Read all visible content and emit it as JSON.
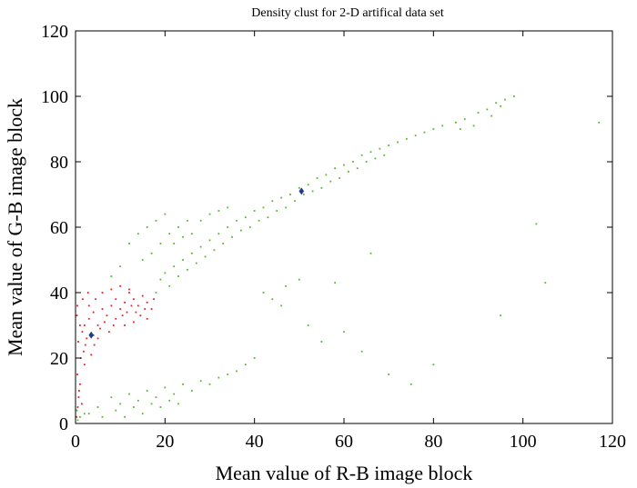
{
  "chart_data": {
    "type": "scatter",
    "title": "Density clust for 2-D artifical data set",
    "xlabel": "Mean value of R-B image block",
    "ylabel": "Mean value of G-B image block",
    "xlim": [
      0,
      120
    ],
    "ylim": [
      0,
      120
    ],
    "xticks": [
      0,
      20,
      40,
      60,
      80,
      100,
      120
    ],
    "yticks": [
      0,
      20,
      40,
      60,
      80,
      100,
      120
    ],
    "grid": false,
    "series": [
      {
        "color": "#ee1c25",
        "points": [
          [
            0.5,
            5
          ],
          [
            0.8,
            10
          ],
          [
            0.4,
            15
          ],
          [
            1.2,
            20
          ],
          [
            0.6,
            25
          ],
          [
            1.5,
            28
          ],
          [
            0.3,
            33
          ],
          [
            2,
            30
          ],
          [
            2.5,
            26
          ],
          [
            1.8,
            22
          ],
          [
            3,
            32
          ],
          [
            4,
            34
          ],
          [
            5,
            30
          ],
          [
            6,
            35
          ],
          [
            7,
            33
          ],
          [
            8,
            36
          ],
          [
            9,
            38
          ],
          [
            10,
            35
          ],
          [
            11,
            37
          ],
          [
            12,
            40
          ],
          [
            13,
            38
          ],
          [
            14,
            36
          ],
          [
            15,
            39
          ],
          [
            16,
            37
          ],
          [
            17,
            35
          ],
          [
            4,
            27
          ],
          [
            5.5,
            29
          ],
          [
            6.5,
            31
          ],
          [
            7.5,
            28
          ],
          [
            9,
            32
          ],
          [
            10.5,
            33
          ],
          [
            11.5,
            34
          ],
          [
            12.5,
            36
          ],
          [
            13.5,
            34
          ],
          [
            14.5,
            33
          ],
          [
            15.5,
            35
          ],
          [
            3,
            36
          ],
          [
            4.5,
            38
          ],
          [
            6,
            40
          ],
          [
            8,
            41
          ],
          [
            10,
            42
          ],
          [
            12,
            41
          ],
          [
            2,
            18
          ],
          [
            1,
            12
          ],
          [
            0.7,
            8
          ],
          [
            1.4,
            6
          ],
          [
            2.2,
            24
          ],
          [
            3.5,
            21
          ],
          [
            4.2,
            24
          ],
          [
            5,
            26
          ],
          [
            8.5,
            30
          ],
          [
            11,
            30
          ],
          [
            13,
            31
          ],
          [
            16,
            32
          ],
          [
            17.5,
            38
          ],
          [
            1,
            30
          ],
          [
            0.4,
            36
          ],
          [
            1.6,
            38
          ],
          [
            2.8,
            40
          ],
          [
            0.2,
            2
          ]
        ]
      },
      {
        "color": "#55b82e",
        "points": [
          [
            18,
            40
          ],
          [
            19,
            44
          ],
          [
            20,
            46
          ],
          [
            21,
            42
          ],
          [
            22,
            48
          ],
          [
            23,
            45
          ],
          [
            24,
            50
          ],
          [
            25,
            47
          ],
          [
            26,
            52
          ],
          [
            27,
            49
          ],
          [
            28,
            54
          ],
          [
            29,
            51
          ],
          [
            30,
            56
          ],
          [
            31,
            53
          ],
          [
            32,
            58
          ],
          [
            33,
            55
          ],
          [
            34,
            60
          ],
          [
            35,
            57
          ],
          [
            36,
            62
          ],
          [
            37,
            59
          ],
          [
            38,
            63
          ],
          [
            39,
            60
          ],
          [
            40,
            65
          ],
          [
            41,
            62
          ],
          [
            42,
            66
          ],
          [
            43,
            63
          ],
          [
            44,
            68
          ],
          [
            45,
            65
          ],
          [
            46,
            69
          ],
          [
            47,
            66
          ],
          [
            48,
            70
          ],
          [
            49,
            68
          ],
          [
            50,
            72
          ],
          [
            51,
            70
          ],
          [
            52,
            73
          ],
          [
            53,
            71
          ],
          [
            54,
            75
          ],
          [
            55,
            72
          ],
          [
            56,
            76
          ],
          [
            57,
            74
          ],
          [
            58,
            78
          ],
          [
            59,
            75
          ],
          [
            60,
            79
          ],
          [
            61,
            77
          ],
          [
            62,
            80
          ],
          [
            63,
            78
          ],
          [
            64,
            82
          ],
          [
            65,
            80
          ],
          [
            66,
            83
          ],
          [
            67,
            81
          ],
          [
            68,
            84
          ],
          [
            69,
            82
          ],
          [
            70,
            85
          ],
          [
            72,
            86
          ],
          [
            74,
            87
          ],
          [
            76,
            88
          ],
          [
            78,
            89
          ],
          [
            80,
            90
          ],
          [
            82,
            91
          ],
          [
            85,
            92
          ],
          [
            87,
            93
          ],
          [
            90,
            95
          ],
          [
            92,
            96
          ],
          [
            94,
            98
          ],
          [
            96,
            99
          ],
          [
            98,
            100
          ],
          [
            95,
            97
          ],
          [
            93,
            94
          ],
          [
            89,
            91
          ],
          [
            86,
            90
          ],
          [
            12,
            55
          ],
          [
            14,
            58
          ],
          [
            16,
            60
          ],
          [
            18,
            62
          ],
          [
            20,
            64
          ],
          [
            15,
            50
          ],
          [
            17,
            52
          ],
          [
            19,
            55
          ],
          [
            21,
            58
          ],
          [
            23,
            60
          ],
          [
            25,
            62
          ],
          [
            22,
            55
          ],
          [
            24,
            57
          ],
          [
            26,
            58
          ],
          [
            28,
            62
          ],
          [
            30,
            64
          ],
          [
            32,
            65
          ],
          [
            34,
            66
          ],
          [
            10,
            48
          ],
          [
            8,
            45
          ],
          [
            5,
            5
          ],
          [
            8,
            8
          ],
          [
            10,
            6
          ],
          [
            12,
            9
          ],
          [
            14,
            7
          ],
          [
            16,
            10
          ],
          [
            18,
            8
          ],
          [
            20,
            11
          ],
          [
            22,
            9
          ],
          [
            24,
            12
          ],
          [
            26,
            10
          ],
          [
            28,
            13
          ],
          [
            30,
            12
          ],
          [
            32,
            14
          ],
          [
            34,
            15
          ],
          [
            36,
            16
          ],
          [
            38,
            18
          ],
          [
            40,
            20
          ],
          [
            3,
            3
          ],
          [
            6,
            2
          ],
          [
            9,
            4
          ],
          [
            11,
            2
          ],
          [
            13,
            5
          ],
          [
            15,
            3
          ],
          [
            17,
            6
          ],
          [
            19,
            5
          ],
          [
            21,
            7
          ],
          [
            23,
            6
          ],
          [
            0.5,
            1
          ],
          [
            1,
            2
          ],
          [
            2,
            3
          ],
          [
            0.3,
            4
          ],
          [
            46,
            36
          ],
          [
            52,
            30
          ],
          [
            60,
            28
          ],
          [
            55,
            25
          ],
          [
            64,
            22
          ],
          [
            75,
            12
          ],
          [
            80,
            18
          ],
          [
            70,
            15
          ],
          [
            103,
            61
          ],
          [
            105,
            43
          ],
          [
            117,
            92
          ],
          [
            95,
            33
          ],
          [
            66,
            52
          ],
          [
            58,
            43
          ],
          [
            50,
            44
          ],
          [
            47,
            42
          ],
          [
            44,
            38
          ],
          [
            42,
            40
          ]
        ]
      },
      {
        "color": "#1f3d91",
        "marker": "diamond",
        "points": [
          [
            3.5,
            27
          ],
          [
            50.5,
            71
          ]
        ]
      }
    ]
  }
}
